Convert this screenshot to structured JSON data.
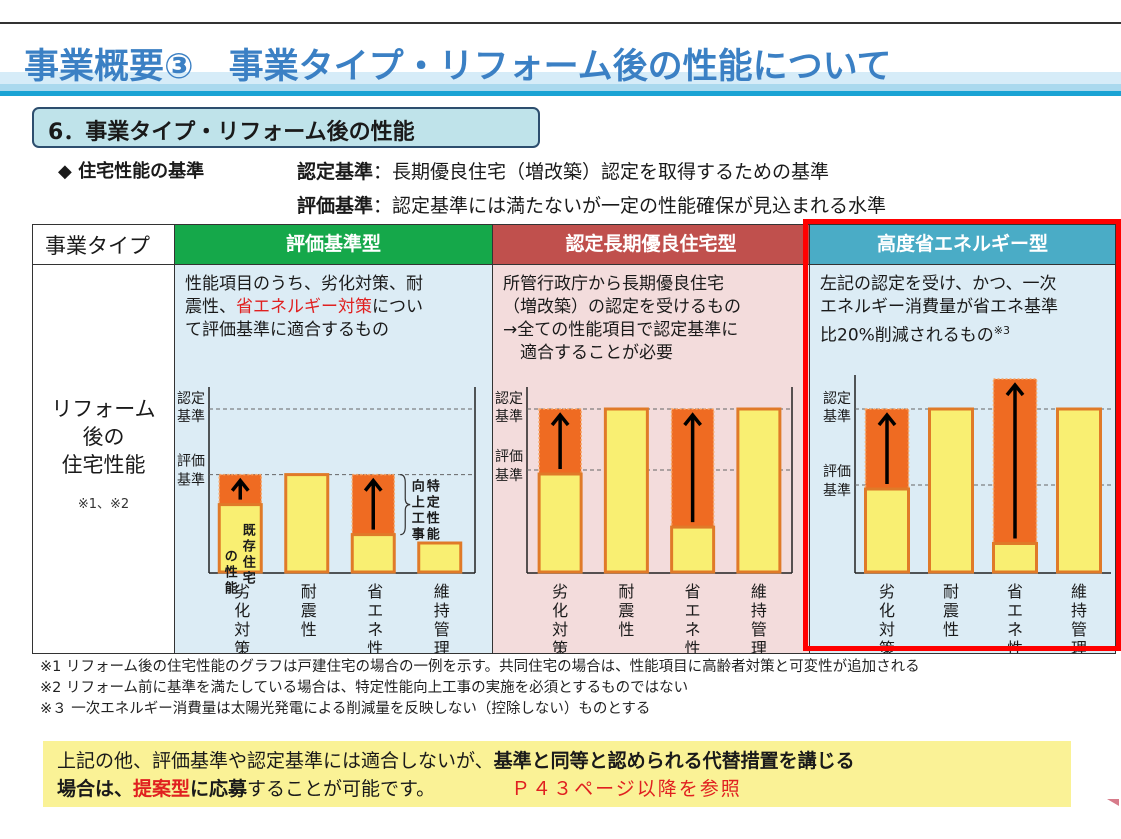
{
  "slide": {
    "title": "事業概要③　事業タイプ・リフォーム後の性能について",
    "section_heading": "6．事業タイプ・リフォーム後の性能"
  },
  "criteria": {
    "heading": "◆ 住宅性能の基準",
    "items": [
      {
        "term": "認定基準",
        "sep": "：",
        "definition": "長期優良住宅（増改築）認定を取得するための基準"
      },
      {
        "term": "評価基準",
        "sep": "：",
        "definition": "認定基準には満たないが一定の性能確保が見込まれる水準"
      }
    ]
  },
  "table": {
    "header_label": "事業タイプ",
    "row_label_lines": [
      "リフォーム",
      "後の",
      "住宅性能"
    ],
    "row_label_note": "※1、※2",
    "columns": [
      {
        "title": "評価基準型",
        "header_color": "#15a84a",
        "body_color": "#dcecf5",
        "description_parts": [
          {
            "text": "性能項目のうち、劣化対策、耐",
            "red": false,
            "br": true
          },
          {
            "text": "震性、",
            "red": false
          },
          {
            "text": "省エネルギー対策",
            "red": true
          },
          {
            "text": "につい",
            "red": false,
            "br": true
          },
          {
            "text": "て評価基準に適合するもの",
            "red": false
          }
        ]
      },
      {
        "title": "認定長期優良住宅型",
        "header_color": "#c0504d",
        "body_color": "#f3dcdc",
        "description_parts": [
          {
            "text": "所管行政庁から長期優良住宅",
            "red": false,
            "br": true
          },
          {
            "text": "（増改築）の認定を受けるもの",
            "red": false,
            "br": true
          },
          {
            "text": "→全ての性能項目で認定基準に",
            "red": false,
            "br": true
          },
          {
            "text": "　適合することが必要",
            "red": false
          }
        ]
      },
      {
        "title": "高度省エネルギー型",
        "header_color": "#4aacc6",
        "body_color": "#dcecf5",
        "description_parts": [
          {
            "text": "左記の認定を受け、かつ、一次",
            "red": false,
            "br": true
          },
          {
            "text": "エネルギー消費量が省エネ基準",
            "red": false,
            "br": true
          },
          {
            "text": "比20%削減されるもの",
            "red": false
          },
          {
            "text": "※3",
            "red": false,
            "sup": true
          }
        ]
      }
    ]
  },
  "chart_data": [
    {
      "type": "bar",
      "title": "評価基準型",
      "categories": [
        "劣化対策",
        "耐震性",
        "省エネ性",
        "維持管理"
      ],
      "y_levels": [
        {
          "name": "評価基準",
          "value": 60
        },
        {
          "name": "認定基準",
          "value": 100
        }
      ],
      "ylim": [
        0,
        120
      ],
      "series": [
        {
          "name": "既存住宅の性能",
          "values": [
            40,
            60,
            18,
            15
          ]
        },
        {
          "name": "特定性能向上工事",
          "values": [
            20,
            0,
            42,
            0
          ]
        }
      ],
      "annotations": [
        "既存住宅の性能",
        "特定性能向上工事"
      ]
    },
    {
      "type": "bar",
      "title": "認定長期優良住宅型",
      "categories": [
        "劣化対策",
        "耐震性",
        "省エネ性",
        "維持管理"
      ],
      "y_levels": [
        {
          "name": "評価基準",
          "value": 60
        },
        {
          "name": "認定基準",
          "value": 100
        }
      ],
      "ylim": [
        0,
        120
      ],
      "series": [
        {
          "name": "既存住宅の性能",
          "values": [
            58,
            100,
            28,
            100
          ]
        },
        {
          "name": "特定性能向上工事",
          "values": [
            42,
            0,
            72,
            0
          ]
        }
      ],
      "annotations": []
    },
    {
      "type": "bar",
      "title": "高度省エネルギー型",
      "categories": [
        "劣化対策",
        "耐震性",
        "省エネ性",
        "維持管理"
      ],
      "y_levels": [
        {
          "name": "評価基準",
          "value": 60
        },
        {
          "name": "認定基準",
          "value": 100
        }
      ],
      "ylim": [
        0,
        120
      ],
      "series": [
        {
          "name": "既存住宅の性能",
          "values": [
            58,
            100,
            18,
            100
          ]
        },
        {
          "name": "特定性能向上工事",
          "values": [
            42,
            0,
            100,
            0
          ]
        }
      ],
      "annotations": []
    }
  ],
  "chart_labels": {
    "y_top_lines": [
      "認定",
      "基準"
    ],
    "y_mid_lines": [
      "評価",
      "基準"
    ],
    "existing_perf": "既存住宅の性能",
    "improvement_work": "特定性能向上工事"
  },
  "notes": [
    "※1 リフォーム後の住宅性能のグラフは戸建住宅の場合の一例を示す。共同住宅の場合は、性能項目に高齢者対策と可変性が追加される",
    "※2 リフォーム前に基準を満たしている場合は、特定性能向上工事の実施を必須とするものではない",
    "※３ 一次エネルギー消費量は太陽光発電による削減量を反映しない（控除しない）ものとする"
  ],
  "callout": {
    "line1_plain": "上記の他、評価基準や認定基準には適合しないが、",
    "line1_bold": "基準と同等と認められる代替措置を講じる",
    "line2_bold1": "場合は、",
    "line2_red": "提案型",
    "line2_bold2": "に応募",
    "line2_plain": "することが可能です。",
    "line2_ref": "Ｐ４３ページ以降を参照"
  },
  "colors": {
    "title_blue": "#3b80c4",
    "bar_fill": "#f9ef72",
    "bar_stroke": "#e07a28",
    "improvement_fill": "#ef6b22",
    "highlight_red": "#ff0000"
  }
}
